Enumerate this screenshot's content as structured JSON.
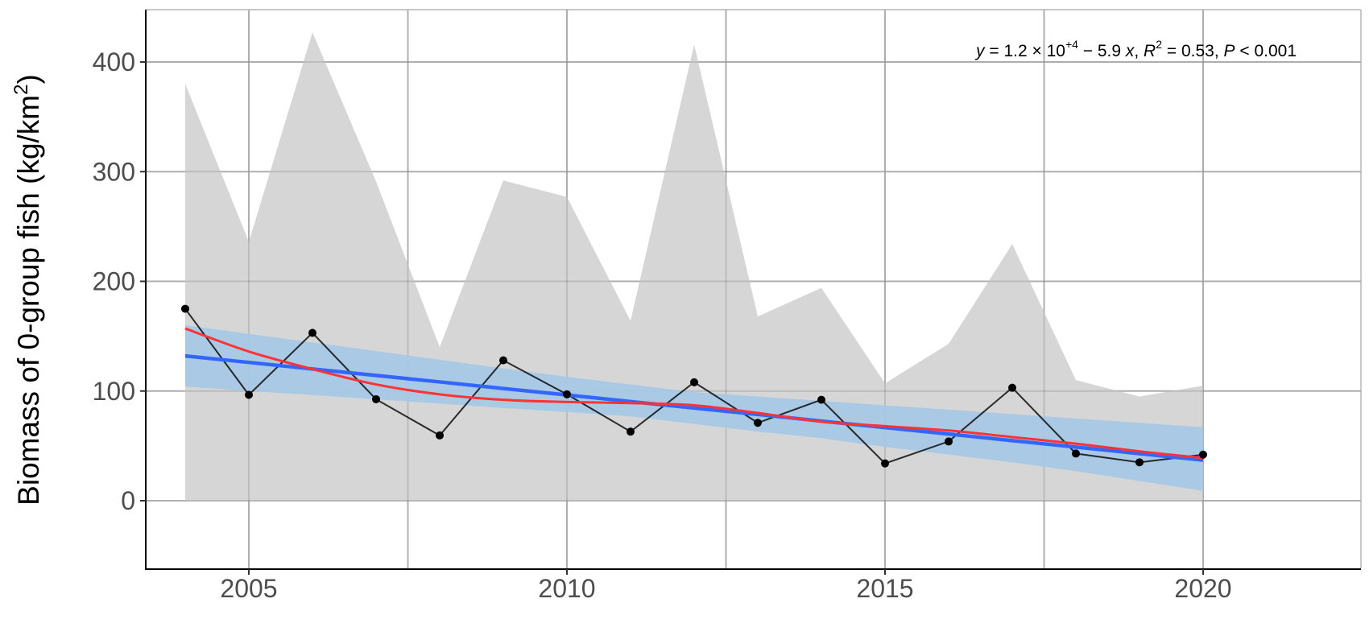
{
  "chart_data": {
    "type": "line",
    "title": "",
    "xlabel": "",
    "ylabel": "Biomass of 0-group fish (kg/km",
    "ylabel_superscript": "2",
    "ylabel_suffix": ")",
    "xlim": [
      2003.3,
      2020.8
    ],
    "ylim": [
      -20,
      445
    ],
    "grid": true,
    "x_ticks": [
      2005,
      2010,
      2015,
      2020
    ],
    "y_ticks": [
      0,
      100,
      200,
      300,
      400
    ],
    "x": [
      2004,
      2005,
      2006,
      2007,
      2008,
      2009,
      2010,
      2011,
      2012,
      2013,
      2014,
      2015,
      2016,
      2017,
      2018,
      2019,
      2020
    ],
    "series": [
      {
        "name": "Biomass (observed)",
        "kind": "line+points",
        "color": "#000000",
        "values": [
          175,
          96.5,
          153,
          92.5,
          59.5,
          128,
          97,
          63,
          108,
          71,
          92,
          34,
          54,
          103,
          43,
          35,
          42
        ]
      },
      {
        "name": "Uncertainty range (upper)",
        "kind": "ribbon",
        "color": "#d6d6d6",
        "lower": [
          0,
          0,
          0,
          0,
          0,
          0,
          0,
          0,
          0,
          0,
          0,
          0,
          0,
          0,
          0,
          0,
          0
        ],
        "upper": [
          380,
          236,
          427,
          291,
          140,
          292,
          277,
          164,
          416,
          168,
          194,
          107,
          143,
          234,
          110,
          95,
          105
        ]
      },
      {
        "name": "Linear fit",
        "kind": "line",
        "color": "#3366ff",
        "values": [
          132,
          126.1,
          120.1,
          114.2,
          108.3,
          102.3,
          96.4,
          90.4,
          84.5,
          78.6,
          72.6,
          66.7,
          60.8,
          54.8,
          48.9,
          42.9,
          37
        ]
      },
      {
        "name": "Linear fit 95% CI",
        "kind": "ribbon",
        "color": "#a6c8e6",
        "lower": [
          104,
          100.1,
          96.3,
          92.4,
          88.5,
          84.6,
          80.8,
          76.9,
          70,
          63,
          57,
          49,
          42,
          35,
          27,
          18,
          9
        ],
        "upper": [
          160,
          152.1,
          144.3,
          136.4,
          128.5,
          120.6,
          113,
          106,
          99,
          95,
          91,
          87,
          83,
          79,
          75,
          71,
          67
        ]
      },
      {
        "name": "LOESS smooth",
        "kind": "line",
        "color": "#ff3333",
        "values": [
          157,
          136,
          120,
          106,
          97,
          92,
          90,
          89,
          87,
          80,
          72,
          68,
          64,
          58,
          52,
          45,
          39
        ]
      }
    ],
    "annotations": [
      {
        "text_parts": [
          "y",
          " = 1.2 × 10",
          "+4",
          " − 5.9 ",
          "x",
          ", ",
          "R",
          "2",
          " = 0.53, ",
          "P",
          " < 0.001"
        ],
        "position": "top-right"
      }
    ]
  },
  "labels": {
    "ylabel_main": "Biomass of 0-group fish (kg/km",
    "ylabel_sup": "2",
    "ylabel_end": ")",
    "y_ticks": [
      "0",
      "100",
      "200",
      "300",
      "400"
    ],
    "x_ticks": [
      "2005",
      "2010",
      "2015",
      "2020"
    ],
    "eq": {
      "y": "y",
      "eq1": " = 1.2 × 10",
      "exp": "+4",
      "eq2": " − 5.9 ",
      "x": "x",
      "comma": ",  ",
      "R": "R",
      "r_sup": "2",
      "eq3": " = 0.53,  ",
      "P": "P",
      "eq4": " < 0.001"
    }
  },
  "colors": {
    "ribbon_gray": "#d6d6d6",
    "ci_blue": "#a6c8e6",
    "linear_blue": "#3366ff",
    "loess_red": "#ff3333",
    "observed_black": "#000000",
    "grid": "#c8c8c8"
  }
}
